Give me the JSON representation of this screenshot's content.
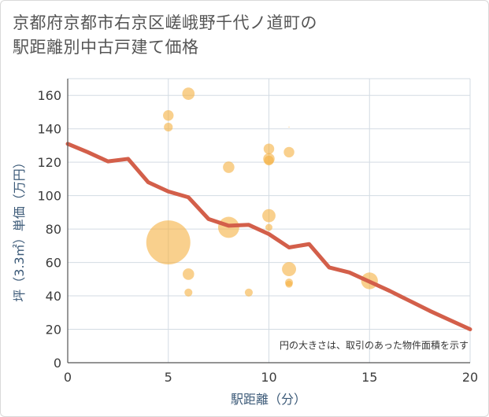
{
  "title_lines": [
    "京都府京都市右京区嵯峨野千代ノ道町の",
    "駅距離別中古戸建て価格"
  ],
  "colors": {
    "bubble": "#f5b041",
    "line": "#d35f4a",
    "grid": "#d3dbe3",
    "axis": "#555555"
  },
  "chart_data": {
    "type": "scatter",
    "title": "京都府京都市右京区嵯峨野千代ノ道町の駅距離別中古戸建て価格",
    "xlabel": "駅距離（分）",
    "ylabel": "坪（3.3㎡）単価（万円）",
    "xlim": [
      0,
      20
    ],
    "ylim": [
      0,
      170
    ],
    "x_ticks": [
      0,
      5,
      10,
      15,
      20
    ],
    "y_ticks": [
      0,
      20,
      40,
      60,
      80,
      100,
      120,
      140,
      160
    ],
    "note": "円の大きさは、取引のあった物件面積を示す",
    "bubbles": [
      {
        "x": 5,
        "y": 72,
        "size": 5.0
      },
      {
        "x": 5,
        "y": 148,
        "size": 1.2
      },
      {
        "x": 5,
        "y": 141,
        "size": 1.0
      },
      {
        "x": 6,
        "y": 161,
        "size": 1.4
      },
      {
        "x": 6,
        "y": 53,
        "size": 1.3
      },
      {
        "x": 6,
        "y": 42,
        "size": 0.9
      },
      {
        "x": 8,
        "y": 81,
        "size": 2.4
      },
      {
        "x": 8,
        "y": 117,
        "size": 1.3
      },
      {
        "x": 9,
        "y": 42,
        "size": 0.9
      },
      {
        "x": 10,
        "y": 128,
        "size": 1.2
      },
      {
        "x": 10,
        "y": 122,
        "size": 1.3
      },
      {
        "x": 10,
        "y": 121,
        "size": 1.1
      },
      {
        "x": 10,
        "y": 88,
        "size": 1.5
      },
      {
        "x": 10,
        "y": 81,
        "size": 0.8
      },
      {
        "x": 11,
        "y": 141,
        "size": 0.1
      },
      {
        "x": 11,
        "y": 126,
        "size": 1.2
      },
      {
        "x": 11,
        "y": 56,
        "size": 1.6
      },
      {
        "x": 11,
        "y": 48,
        "size": 0.9
      },
      {
        "x": 11,
        "y": 47,
        "size": 0.8
      },
      {
        "x": 15,
        "y": 49,
        "size": 1.9
      }
    ],
    "trend_line": {
      "x": [
        0,
        1,
        2,
        3,
        4,
        5,
        6,
        7,
        8,
        9,
        10,
        11,
        12,
        13,
        14,
        15,
        16,
        17,
        18,
        19,
        20
      ],
      "y": [
        131,
        126,
        120.5,
        122,
        108,
        102.5,
        99,
        86,
        82,
        82.5,
        77,
        69,
        71,
        57,
        54,
        48.5,
        43,
        37,
        31,
        25.5,
        20
      ]
    }
  }
}
